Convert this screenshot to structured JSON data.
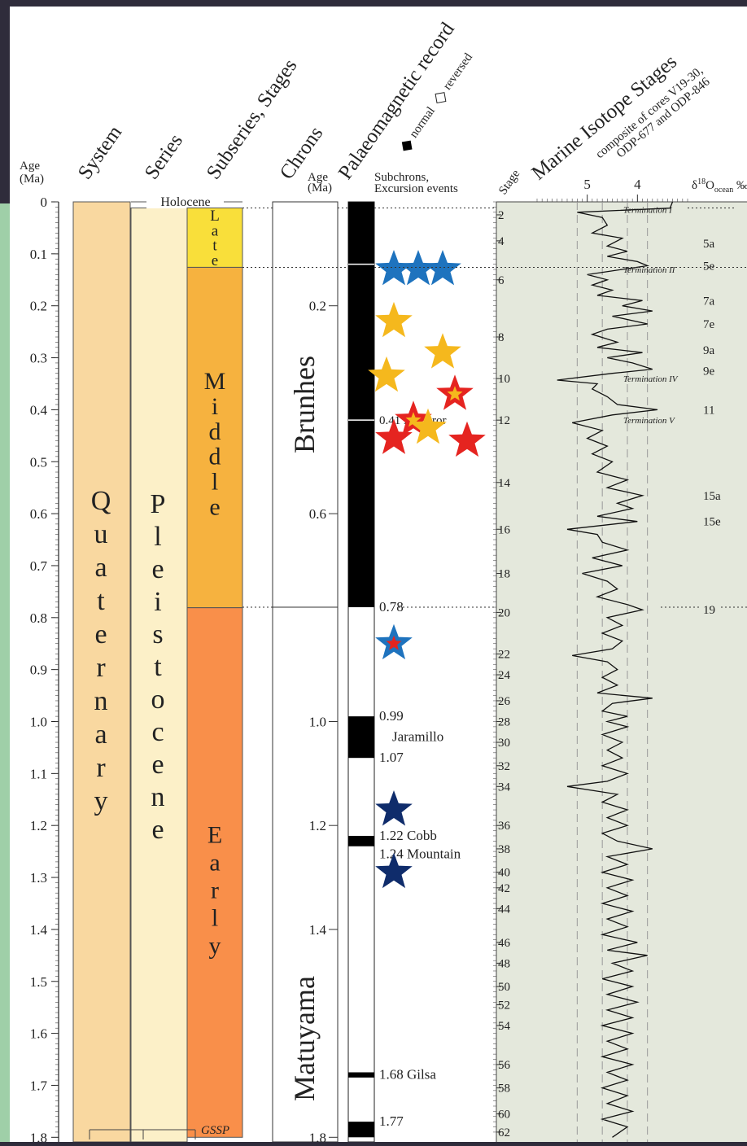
{
  "headers": {
    "age": "Age (Ma)",
    "system": "System",
    "series": "Series",
    "subseries": "Subseries, Stages",
    "chrons": "Chrons",
    "palaeo": "Palaeomagnetic record",
    "palaeo_normal": "normal",
    "palaeo_reversed": "reversed",
    "age2": "Age (Ma)",
    "subchrons": "Subchrons, Excursion events",
    "stage": "Stage",
    "mis": "Marine Isotope Stages",
    "mis_sub": "composite of cores V19-30, ODP-677 and ODP-846",
    "d18o": "δ18Oocean ‰"
  },
  "age_ticks": [
    "0",
    "0.1",
    "0.2",
    "0.3",
    "0.4",
    "0.5",
    "0.6",
    "0.7",
    "0.8",
    "0.9",
    "1.0",
    "1.1",
    "1.2",
    "1.3",
    "1.4",
    "1.5",
    "1.6",
    "1.7",
    "1.8"
  ],
  "system": {
    "label": "Quaternary",
    "color": "#f9d8a0"
  },
  "series": {
    "holocene": "Holocene",
    "label": "Pleistocene",
    "color": "#fcf0c8"
  },
  "stages": [
    {
      "label": "Late",
      "from": 0.0117,
      "to": 0.126,
      "color": "#f9df3a"
    },
    {
      "label": "Middle",
      "from": 0.126,
      "to": 0.781,
      "color": "#f6b23f"
    },
    {
      "label": "Early",
      "from": 0.781,
      "to": 1.8,
      "color": "#f98f4a"
    }
  ],
  "gssp": "GSSP",
  "chrons": [
    {
      "label": "Brunhes",
      "from": 0,
      "to": 0.78
    },
    {
      "label": "Matuyama",
      "from": 0.78,
      "to": 1.8
    }
  ],
  "chron_ticks": [
    "0.2",
    "0.6",
    "1.0",
    "1.2",
    "1.4",
    "1.8"
  ],
  "polarity": [
    {
      "from": 0.0,
      "to": 0.78,
      "type": "normal"
    },
    {
      "from": 0.99,
      "to": 1.07,
      "type": "normal"
    },
    {
      "from": 1.22,
      "to": 1.24,
      "type": "normal"
    },
    {
      "from": 1.675,
      "to": 1.685,
      "type": "normal"
    },
    {
      "from": 1.77,
      "to": 1.8,
      "type": "normal"
    }
  ],
  "subchrons": [
    {
      "label": "0.78",
      "age": 0.78
    },
    {
      "label": "0.99",
      "age": 0.99
    },
    {
      "label": "Jaramillo",
      "age": 1.03
    },
    {
      "label": "1.07",
      "age": 1.07
    },
    {
      "label": "1.22 Cobb",
      "age": 1.22
    },
    {
      "label": "1.24 Mountain",
      "age": 1.255
    },
    {
      "label": "1.68 Gilsa",
      "age": 1.68
    },
    {
      "label": "1.77",
      "age": 1.77
    }
  ],
  "excursions": [
    {
      "label": "0.41 Emperor",
      "age": 0.42
    }
  ],
  "stars": [
    {
      "age": 0.13,
      "offset": 0,
      "fill": "#1e73be",
      "inner": null
    },
    {
      "age": 0.13,
      "offset": 1,
      "fill": "#1e73be",
      "inner": null
    },
    {
      "age": 0.13,
      "offset": 2,
      "fill": "#1e73be",
      "inner": null
    },
    {
      "age": 0.23,
      "offset": 0,
      "fill": "#f5b81d",
      "inner": null
    },
    {
      "age": 0.29,
      "offset": 2,
      "fill": "#f5b81d",
      "inner": null
    },
    {
      "age": 0.335,
      "offset": -0.3,
      "fill": "#f5b81d",
      "inner": null
    },
    {
      "age": 0.37,
      "offset": 2.5,
      "fill": "#e52420",
      "inner": "#f5b81d"
    },
    {
      "age": 0.42,
      "offset": 0.8,
      "fill": "#e52420",
      "inner": "#f5b81d"
    },
    {
      "age": 0.455,
      "offset": 0,
      "fill": "#e52420",
      "inner": null
    },
    {
      "age": 0.435,
      "offset": 1.4,
      "fill": "#f5b81d",
      "inner": null
    },
    {
      "age": 0.46,
      "offset": 3,
      "fill": "#e52420",
      "inner": null
    },
    {
      "age": 0.85,
      "offset": 0,
      "fill": "#1e73be",
      "inner": "#e52420"
    },
    {
      "age": 1.17,
      "offset": 0,
      "fill": "#0f2c6b",
      "inner": null
    },
    {
      "age": 1.29,
      "offset": 0,
      "fill": "#0f2c6b",
      "inner": null
    }
  ],
  "mis_left": [
    {
      "label": "2",
      "age": 0.025
    },
    {
      "label": "4",
      "age": 0.075
    },
    {
      "label": "6",
      "age": 0.15
    },
    {
      "label": "8",
      "age": 0.26
    },
    {
      "label": "10",
      "age": 0.34
    },
    {
      "label": "12",
      "age": 0.42
    },
    {
      "label": "14",
      "age": 0.54
    },
    {
      "label": "16",
      "age": 0.63
    },
    {
      "label": "18",
      "age": 0.715
    },
    {
      "label": "20",
      "age": 0.79
    },
    {
      "label": "22",
      "age": 0.87
    },
    {
      "label": "24",
      "age": 0.91
    },
    {
      "label": "26",
      "age": 0.96
    },
    {
      "label": "28",
      "age": 1.0
    },
    {
      "label": "30",
      "age": 1.04
    },
    {
      "label": "32",
      "age": 1.085
    },
    {
      "label": "34",
      "age": 1.125
    },
    {
      "label": "36",
      "age": 1.2
    },
    {
      "label": "38",
      "age": 1.245
    },
    {
      "label": "40",
      "age": 1.29
    },
    {
      "label": "42",
      "age": 1.32
    },
    {
      "label": "44",
      "age": 1.36
    },
    {
      "label": "46",
      "age": 1.425
    },
    {
      "label": "48",
      "age": 1.465
    },
    {
      "label": "50",
      "age": 1.51
    },
    {
      "label": "52",
      "age": 1.545
    },
    {
      "label": "54",
      "age": 1.585
    },
    {
      "label": "56",
      "age": 1.66
    },
    {
      "label": "58",
      "age": 1.705
    },
    {
      "label": "60",
      "age": 1.755
    },
    {
      "label": "62",
      "age": 1.79
    }
  ],
  "mis_right": [
    {
      "label": "5a",
      "age": 0.08
    },
    {
      "label": "5e",
      "age": 0.123
    },
    {
      "label": "7a",
      "age": 0.19
    },
    {
      "label": "7e",
      "age": 0.235
    },
    {
      "label": "9a",
      "age": 0.285
    },
    {
      "label": "9e",
      "age": 0.325
    },
    {
      "label": "11",
      "age": 0.4
    },
    {
      "label": "15a",
      "age": 0.565
    },
    {
      "label": "15e",
      "age": 0.615
    },
    {
      "label": "19",
      "age": 0.785
    }
  ],
  "terminations": [
    {
      "label": "Termination I",
      "age": 0.015
    },
    {
      "label": "Termination II",
      "age": 0.13
    },
    {
      "label": "Termination IV",
      "age": 0.34
    },
    {
      "label": "Termination V",
      "age": 0.42
    }
  ],
  "d18o_axis": [
    "5",
    "4"
  ],
  "d18o": {
    "x_range": [
      6.0,
      3.0
    ],
    "points": [
      [
        0.0,
        3.3
      ],
      [
        0.012,
        3.35
      ],
      [
        0.02,
        5.2
      ],
      [
        0.03,
        4.7
      ],
      [
        0.045,
        4.6
      ],
      [
        0.06,
        4.9
      ],
      [
        0.07,
        4.3
      ],
      [
        0.085,
        4.6
      ],
      [
        0.095,
        4.2
      ],
      [
        0.105,
        4.6
      ],
      [
        0.115,
        4.0
      ],
      [
        0.123,
        3.8
      ],
      [
        0.13,
        4.3
      ],
      [
        0.14,
        5.0
      ],
      [
        0.15,
        4.6
      ],
      [
        0.16,
        4.9
      ],
      [
        0.17,
        4.5
      ],
      [
        0.18,
        4.8
      ],
      [
        0.19,
        3.9
      ],
      [
        0.2,
        4.3
      ],
      [
        0.21,
        3.7
      ],
      [
        0.22,
        4.5
      ],
      [
        0.235,
        3.8
      ],
      [
        0.245,
        4.6
      ],
      [
        0.255,
        4.9
      ],
      [
        0.27,
        4.4
      ],
      [
        0.28,
        4.8
      ],
      [
        0.29,
        3.9
      ],
      [
        0.3,
        4.6
      ],
      [
        0.31,
        4.1
      ],
      [
        0.322,
        3.7
      ],
      [
        0.33,
        4.5
      ],
      [
        0.343,
        5.6
      ],
      [
        0.35,
        4.8
      ],
      [
        0.36,
        4.9
      ],
      [
        0.375,
        4.6
      ],
      [
        0.39,
        4.4
      ],
      [
        0.4,
        3.6
      ],
      [
        0.41,
        4.5
      ],
      [
        0.425,
        5.3
      ],
      [
        0.44,
        4.7
      ],
      [
        0.455,
        5.0
      ],
      [
        0.47,
        4.6
      ],
      [
        0.485,
        4.9
      ],
      [
        0.5,
        4.5
      ],
      [
        0.52,
        4.8
      ],
      [
        0.535,
        4.2
      ],
      [
        0.55,
        4.6
      ],
      [
        0.565,
        3.9
      ],
      [
        0.58,
        4.4
      ],
      [
        0.59,
        4.1
      ],
      [
        0.605,
        4.8
      ],
      [
        0.615,
        4.0
      ],
      [
        0.63,
        5.4
      ],
      [
        0.64,
        4.8
      ],
      [
        0.655,
        4.7
      ],
      [
        0.67,
        4.2
      ],
      [
        0.685,
        4.9
      ],
      [
        0.7,
        4.3
      ],
      [
        0.715,
        5.1
      ],
      [
        0.73,
        4.6
      ],
      [
        0.745,
        4.4
      ],
      [
        0.76,
        4.8
      ],
      [
        0.775,
        4.2
      ],
      [
        0.785,
        3.9
      ],
      [
        0.8,
        4.6
      ],
      [
        0.815,
        4.3
      ],
      [
        0.83,
        4.7
      ],
      [
        0.845,
        4.3
      ],
      [
        0.86,
        4.5
      ],
      [
        0.873,
        5.3
      ],
      [
        0.885,
        4.6
      ],
      [
        0.9,
        4.4
      ],
      [
        0.915,
        4.7
      ],
      [
        0.93,
        4.4
      ],
      [
        0.945,
        4.8
      ],
      [
        0.955,
        3.7
      ],
      [
        0.965,
        4.5
      ],
      [
        0.98,
        4.7
      ],
      [
        0.99,
        4.2
      ],
      [
        1.0,
        4.6
      ],
      [
        1.01,
        4.2
      ],
      [
        1.025,
        4.7
      ],
      [
        1.04,
        4.3
      ],
      [
        1.055,
        4.6
      ],
      [
        1.07,
        4.3
      ],
      [
        1.085,
        4.7
      ],
      [
        1.1,
        4.2
      ],
      [
        1.115,
        4.6
      ],
      [
        1.125,
        5.4
      ],
      [
        1.14,
        4.4
      ],
      [
        1.155,
        4.7
      ],
      [
        1.17,
        4.2
      ],
      [
        1.185,
        4.6
      ],
      [
        1.2,
        4.2
      ],
      [
        1.215,
        4.7
      ],
      [
        1.23,
        4.4
      ],
      [
        1.245,
        3.7
      ],
      [
        1.26,
        4.6
      ],
      [
        1.275,
        4.2
      ],
      [
        1.29,
        4.7
      ],
      [
        1.305,
        4.1
      ],
      [
        1.32,
        4.6
      ],
      [
        1.335,
        4.2
      ],
      [
        1.35,
        4.7
      ],
      [
        1.365,
        4.1
      ],
      [
        1.38,
        4.6
      ],
      [
        1.395,
        4.2
      ],
      [
        1.41,
        4.7
      ],
      [
        1.425,
        4.0
      ],
      [
        1.44,
        4.6
      ],
      [
        1.45,
        3.8
      ],
      [
        1.465,
        4.5
      ],
      [
        1.48,
        4.1
      ],
      [
        1.495,
        4.7
      ],
      [
        1.51,
        4.1
      ],
      [
        1.525,
        4.6
      ],
      [
        1.54,
        4.0
      ],
      [
        1.555,
        4.6
      ],
      [
        1.57,
        4.1
      ],
      [
        1.585,
        4.7
      ],
      [
        1.6,
        4.1
      ],
      [
        1.615,
        4.6
      ],
      [
        1.63,
        4.2
      ],
      [
        1.645,
        4.7
      ],
      [
        1.66,
        4.1
      ],
      [
        1.675,
        4.6
      ],
      [
        1.69,
        4.2
      ],
      [
        1.705,
        4.7
      ],
      [
        1.72,
        4.2
      ],
      [
        1.735,
        4.6
      ],
      [
        1.75,
        4.1
      ],
      [
        1.765,
        4.7
      ],
      [
        1.78,
        4.2
      ],
      [
        1.8,
        4.5
      ]
    ]
  },
  "colors": {
    "mis_panel": "#e4e8dc",
    "border": "#555555"
  }
}
